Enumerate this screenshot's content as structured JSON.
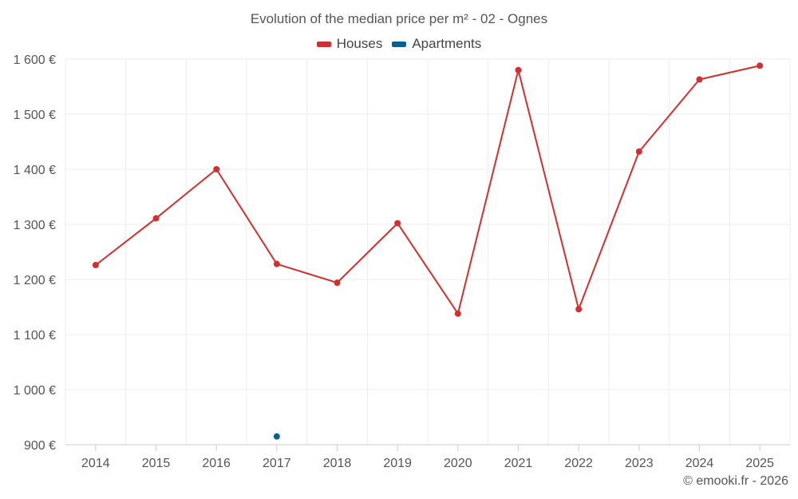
{
  "credit": "© emooki.fr - 2026",
  "chart_data": {
    "type": "line",
    "title": "Evolution of the median price per m² - 02 - Ognes",
    "xlabel": "",
    "ylabel": "",
    "categories": [
      "2014",
      "2015",
      "2016",
      "2017",
      "2018",
      "2019",
      "2020",
      "2021",
      "2022",
      "2023",
      "2024",
      "2025"
    ],
    "ylim": [
      900,
      1600
    ],
    "yticks": [
      900,
      1000,
      1100,
      1200,
      1300,
      1400,
      1500,
      1600
    ],
    "ytick_labels": [
      "900 €",
      "1 000 €",
      "1 100 €",
      "1 200 €",
      "1 300 €",
      "1 400 €",
      "1 500 €",
      "1 600 €"
    ],
    "grid": true,
    "legend_position": "top-center",
    "series": [
      {
        "name": "Houses",
        "color": "#d32f2f",
        "values": [
          1226,
          1311,
          1400,
          1228,
          1194,
          1302,
          1138,
          1580,
          1146,
          1432,
          1563,
          1588
        ]
      },
      {
        "name": "Apartments",
        "color": "#0e5f91",
        "values": [
          null,
          null,
          null,
          915,
          null,
          null,
          null,
          null,
          null,
          null,
          null,
          null
        ]
      }
    ]
  }
}
